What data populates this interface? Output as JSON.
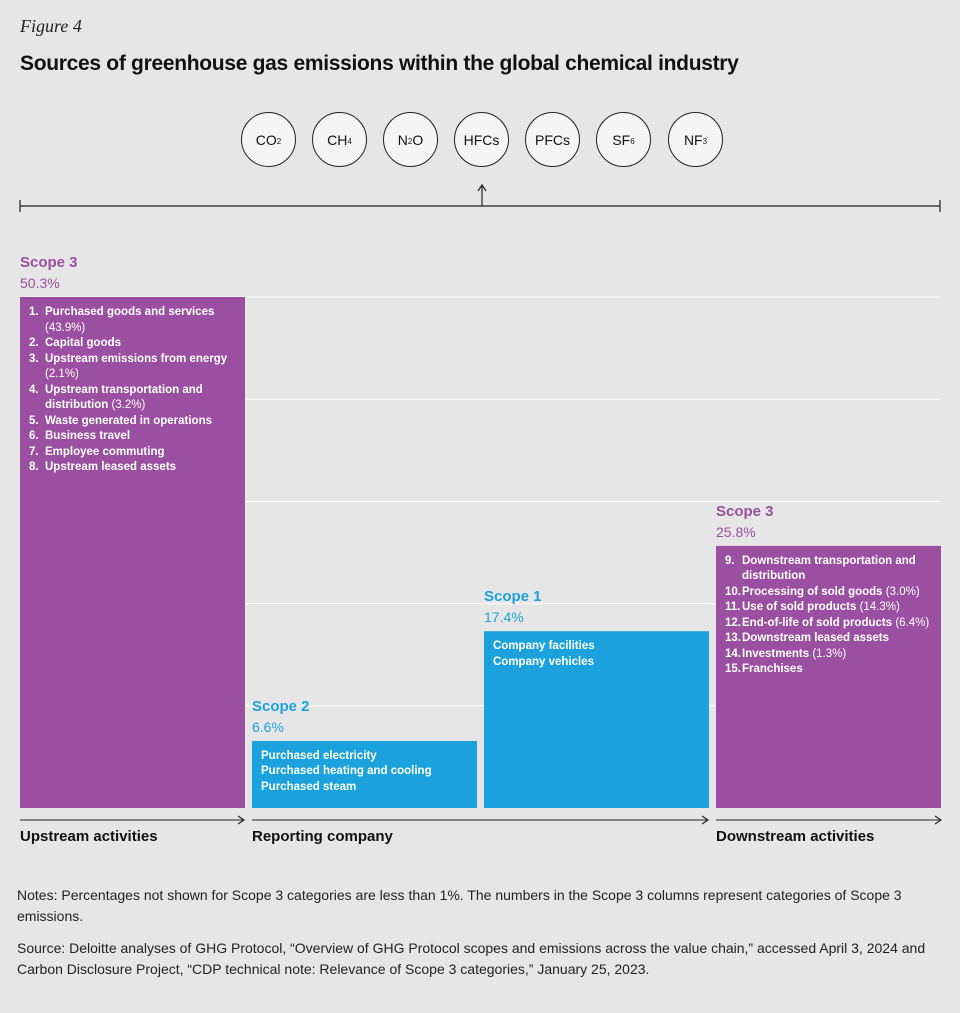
{
  "figure_label": "Figure 4",
  "title": "Sources of greenhouse gas emissions within the global chemical industry",
  "gases": [
    {
      "base": "CO",
      "sub": "2"
    },
    {
      "base": "CH",
      "sub": "4"
    },
    {
      "base": "N",
      "sub": "2",
      "tail": "O"
    },
    {
      "base": "HFCs",
      "sub": ""
    },
    {
      "base": "PFCs",
      "sub": ""
    },
    {
      "base": "SF",
      "sub": "6"
    },
    {
      "base": "NF",
      "sub": "3"
    }
  ],
  "colors": {
    "scope3": "#9b4fa0",
    "scope12": "#1ba1dc",
    "grid": "#ffffff",
    "axis": "#222222"
  },
  "chart_data": {
    "type": "bar",
    "title": "Sources of greenhouse gas emissions within the global chemical industry",
    "ylim": [
      0,
      50.3
    ],
    "xlabel": "",
    "ylabel": "",
    "categories": [
      "Scope 3 (upstream)",
      "Scope 2",
      "Scope 1",
      "Scope 3 (downstream)"
    ],
    "bars": [
      {
        "scope": "Scope 3",
        "percent_label": "50.3%",
        "value": 50.3,
        "color": "#9b4fa0",
        "numbered": true,
        "items": [
          {
            "num": "1.",
            "text": "Purchased goods and services",
            "share": "(43.9%)"
          },
          {
            "num": "2.",
            "text": "Capital goods",
            "share": ""
          },
          {
            "num": "3.",
            "text": "Upstream emissions from energy",
            "share": "(2.1%)"
          },
          {
            "num": "4.",
            "text": "Upstream transportation and distribution",
            "share": "(3.2%)"
          },
          {
            "num": "5.",
            "text": "Waste generated in operations",
            "share": ""
          },
          {
            "num": "6.",
            "text": "Business travel",
            "share": ""
          },
          {
            "num": "7.",
            "text": "Employee commuting",
            "share": ""
          },
          {
            "num": "8.",
            "text": "Upstream leased assets",
            "share": ""
          }
        ]
      },
      {
        "scope": "Scope 2",
        "percent_label": "6.6%",
        "value": 6.6,
        "color": "#1ba1dc",
        "numbered": false,
        "items": [
          {
            "num": "",
            "text": "Purchased electricity",
            "share": ""
          },
          {
            "num": "",
            "text": "Purchased heating and cooling",
            "share": ""
          },
          {
            "num": "",
            "text": "Purchased steam",
            "share": ""
          }
        ]
      },
      {
        "scope": "Scope 1",
        "percent_label": "17.4%",
        "value": 17.4,
        "color": "#1ba1dc",
        "numbered": false,
        "items": [
          {
            "num": "",
            "text": "Company facilities",
            "share": ""
          },
          {
            "num": "",
            "text": "Company vehicles",
            "share": ""
          }
        ]
      },
      {
        "scope": "Scope 3",
        "percent_label": "25.8%",
        "value": 25.8,
        "color": "#9b4fa0",
        "numbered": true,
        "items": [
          {
            "num": "9.",
            "text": "Downstream transportation and distribution",
            "share": ""
          },
          {
            "num": "10.",
            "text": "Processing of sold goods",
            "share": "(3.0%)"
          },
          {
            "num": "11.",
            "text": "Use of sold products",
            "share": "(14.3%)"
          },
          {
            "num": "12.",
            "text": "End-of-life of sold products",
            "share": "(6.4%)"
          },
          {
            "num": "13.",
            "text": "Downstream leased assets",
            "share": ""
          },
          {
            "num": "14.",
            "text": "Investments",
            "share": "(1.3%)"
          },
          {
            "num": "15.",
            "text": "Franchises",
            "share": ""
          }
        ]
      }
    ],
    "axis_groups": [
      "Upstream activities",
      "Reporting company",
      "Downstream activities"
    ]
  },
  "notes": "Notes: Percentages not shown for Scope 3 categories are less than 1%. The numbers in the Scope 3 columns represent categories of Scope 3 emissions.",
  "source": "Source: Deloitte analyses of GHG Protocol, “Overview of GHG Protocol scopes and emissions across the value chain,” accessed April 3, 2024 and Carbon Disclosure Project, “CDP technical note: Relevance of Scope 3 categories,” January 25, 2023."
}
